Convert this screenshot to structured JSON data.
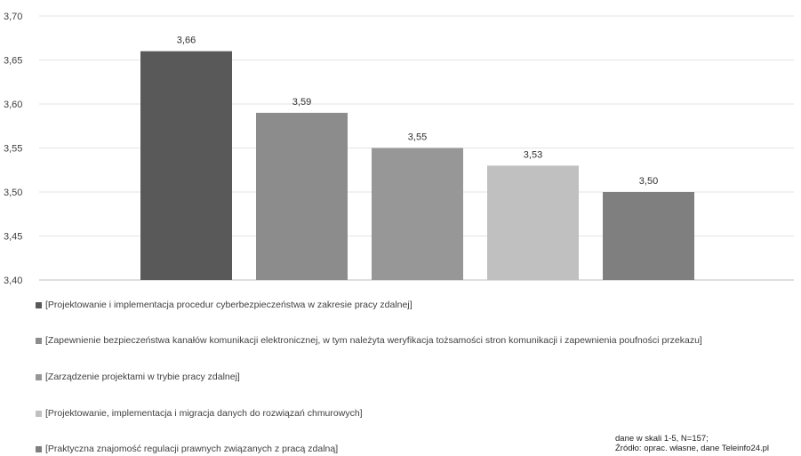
{
  "chart_data": {
    "type": "bar",
    "title": "",
    "xlabel": "",
    "ylabel": "",
    "ylim": [
      3.4,
      3.7
    ],
    "yticks": [
      "3,40",
      "3,45",
      "3,50",
      "3,55",
      "3,60",
      "3,65",
      "3,70"
    ],
    "grid": true,
    "legend_position": "bottom",
    "series": [
      {
        "name": "[Projektowanie i implementacja procedur cyberbezpieczeństwa w zakresie pracy zdalnej]",
        "value": 3.66,
        "label": "3,66",
        "color": "#595959"
      },
      {
        "name": "[Zapewnienie bezpieczeństwa kanałów komunikacji elektronicznej, w tym należyta weryfikacja tożsamości stron komunikacji i zapewnienia poufności przekazu]",
        "value": 3.59,
        "label": "3,59",
        "color": "#8c8c8c"
      },
      {
        "name": "[Zarządzenie projektami w trybie pracy zdalnej]",
        "value": 3.55,
        "label": "3,55",
        "color": "#979797"
      },
      {
        "name": "[Projektowanie, implementacja i migracja danych do rozwiązań chmurowych]",
        "value": 3.53,
        "label": "3,53",
        "color": "#c0c0c0"
      },
      {
        "name": "[Praktyczna znajomość regulacji prawnych związanych z pracą zdalną]",
        "value": 3.5,
        "label": "3,50",
        "color": "#7f7f7f"
      }
    ]
  },
  "source_note": {
    "line1": "dane w skali 1-5, N=157;",
    "line2": "Źródło: oprac. własne, dane Teleinfo24.pl"
  }
}
